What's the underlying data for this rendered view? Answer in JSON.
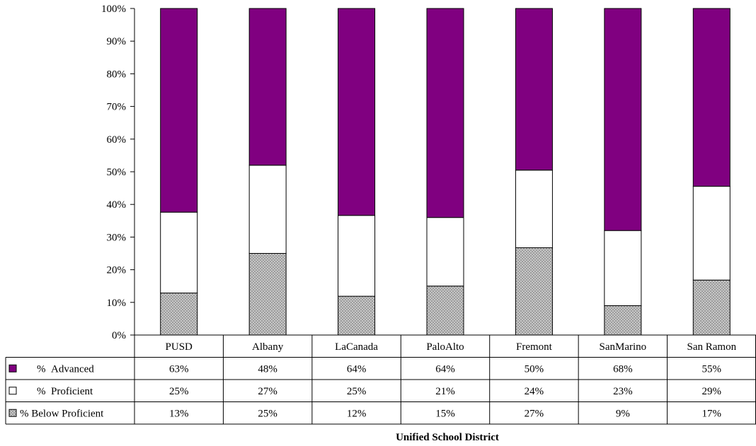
{
  "chart_data": {
    "type": "bar",
    "stacked": true,
    "percent_stacked": true,
    "title": "",
    "xlabel": "Unified School District",
    "ylabel": "",
    "ylim": [
      0,
      100
    ],
    "y_ticks": [
      "0%",
      "10%",
      "20%",
      "30%",
      "40%",
      "50%",
      "60%",
      "70%",
      "80%",
      "90%",
      "100%"
    ],
    "grid": false,
    "legend": "data-table-left",
    "categories": [
      "PUSD",
      "Albany",
      "LaCanada",
      "PaloAlto",
      "Fremont",
      "SanMarino",
      "San Ramon"
    ],
    "series": [
      {
        "name": "% Below Proficient",
        "pattern": "crosshatch",
        "color": "#c8c8c8",
        "values": [
          13,
          25,
          12,
          15,
          27,
          9,
          17
        ],
        "labels": [
          "13%",
          "25%",
          "12%",
          "15%",
          "27%",
          "9%",
          "17%"
        ]
      },
      {
        "name": "% Proficient",
        "color": "#ffffff",
        "values": [
          25,
          27,
          25,
          21,
          24,
          23,
          29
        ],
        "labels": [
          "25%",
          "27%",
          "25%",
          "21%",
          "24%",
          "23%",
          "29%"
        ]
      },
      {
        "name": "% Advanced",
        "color": "#800080",
        "values": [
          63,
          48,
          64,
          64,
          50,
          68,
          55
        ],
        "labels": [
          "63%",
          "48%",
          "64%",
          "64%",
          "50%",
          "68%",
          "55%"
        ]
      }
    ],
    "table_row_order": [
      2,
      1,
      0
    ]
  }
}
